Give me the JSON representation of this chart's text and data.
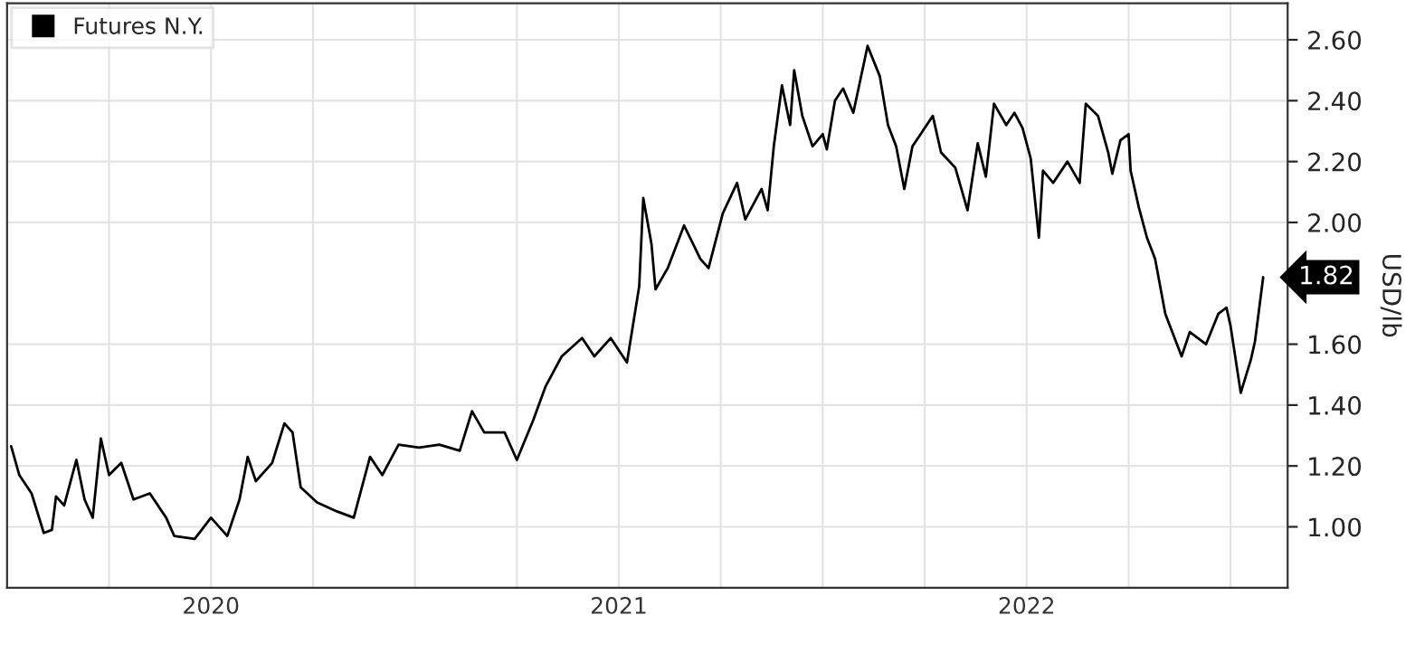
{
  "chart_data": {
    "type": "line",
    "ylabel": "USD/lb",
    "legend": "top left",
    "grid": true,
    "marker": "none",
    "line_style": "solid",
    "xlim": [
      2019.5,
      2022.64
    ],
    "ylim": [
      0.8,
      2.72
    ],
    "xticks": [
      {
        "value": 2019.75,
        "label": null
      },
      {
        "value": 2020.0,
        "label": "2020"
      },
      {
        "value": 2020.25,
        "label": null
      },
      {
        "value": 2020.5,
        "label": null
      },
      {
        "value": 2020.75,
        "label": null
      },
      {
        "value": 2021.0,
        "label": "2021"
      },
      {
        "value": 2021.25,
        "label": null
      },
      {
        "value": 2021.5,
        "label": null
      },
      {
        "value": 2021.75,
        "label": null
      },
      {
        "value": 2022.0,
        "label": "2022"
      },
      {
        "value": 2022.25,
        "label": null
      },
      {
        "value": 2022.5,
        "label": null
      }
    ],
    "yticks": [
      {
        "value": 1.0,
        "label": "1.00"
      },
      {
        "value": 1.2,
        "label": "1.20"
      },
      {
        "value": 1.4,
        "label": "1.40"
      },
      {
        "value": 1.6,
        "label": "1.60"
      },
      {
        "value": 2.0,
        "label": "2.00"
      },
      {
        "value": 2.2,
        "label": "2.20"
      },
      {
        "value": 2.4,
        "label": "2.40"
      },
      {
        "value": 2.6,
        "label": "2.60"
      }
    ],
    "annotations": [
      {
        "text": "1.82",
        "x": 2022.58,
        "y": 1.82
      }
    ],
    "series": [
      {
        "name": "Futures N.Y.",
        "color": "#000000",
        "x": [
          2019.51,
          2019.53,
          2019.56,
          2019.59,
          2019.61,
          2019.62,
          2019.64,
          2019.67,
          2019.69,
          2019.71,
          2019.73,
          2019.75,
          2019.78,
          2019.81,
          2019.85,
          2019.89,
          2019.91,
          2019.96,
          2020.0,
          2020.04,
          2020.07,
          2020.09,
          2020.11,
          2020.15,
          2020.18,
          2020.2,
          2020.22,
          2020.26,
          2020.31,
          2020.35,
          2020.39,
          2020.42,
          2020.46,
          2020.51,
          2020.56,
          2020.61,
          2020.64,
          2020.67,
          2020.72,
          2020.75,
          2020.79,
          2020.82,
          2020.86,
          2020.91,
          2020.94,
          2020.98,
          2021.02,
          2021.05,
          2021.06,
          2021.08,
          2021.09,
          2021.12,
          2021.16,
          2021.2,
          2021.22,
          2021.255,
          2021.29,
          2021.31,
          2021.35,
          2021.365,
          2021.38,
          2021.4,
          2021.42,
          2021.43,
          2021.45,
          2021.475,
          2021.5,
          2021.51,
          2021.53,
          2021.55,
          2021.575,
          2021.61,
          2021.64,
          2021.66,
          2021.68,
          2021.7,
          2021.72,
          2021.75,
          2021.77,
          2021.79,
          2021.825,
          2021.855,
          2021.88,
          2021.9,
          2021.92,
          2021.95,
          2021.97,
          2021.99,
          2022.01,
          2022.03,
          2022.04,
          2022.065,
          2022.1,
          2022.13,
          2022.145,
          2022.175,
          2022.2,
          2022.21,
          2022.23,
          2022.25,
          2022.255,
          2022.275,
          2022.295,
          2022.315,
          2022.34,
          2022.38,
          2022.4,
          2022.44,
          2022.47,
          2022.49,
          2022.5,
          2022.525,
          2022.55,
          2022.56,
          2022.58
        ],
        "values": [
          1.265,
          1.17,
          1.11,
          0.98,
          0.99,
          1.1,
          1.07,
          1.22,
          1.09,
          1.03,
          1.29,
          1.17,
          1.21,
          1.09,
          1.11,
          1.03,
          0.97,
          0.96,
          1.03,
          0.97,
          1.09,
          1.23,
          1.15,
          1.21,
          1.34,
          1.31,
          1.13,
          1.08,
          1.05,
          1.03,
          1.23,
          1.17,
          1.27,
          1.26,
          1.27,
          1.25,
          1.38,
          1.31,
          1.31,
          1.22,
          1.35,
          1.46,
          1.56,
          1.62,
          1.56,
          1.62,
          1.54,
          1.79,
          2.08,
          1.93,
          1.78,
          1.85,
          1.99,
          1.88,
          1.85,
          2.03,
          2.13,
          2.01,
          2.11,
          2.04,
          2.25,
          2.45,
          2.32,
          2.5,
          2.35,
          2.25,
          2.29,
          2.24,
          2.4,
          2.44,
          2.36,
          2.58,
          2.48,
          2.32,
          2.25,
          2.11,
          2.25,
          2.31,
          2.35,
          2.23,
          2.18,
          2.04,
          2.26,
          2.15,
          2.39,
          2.32,
          2.36,
          2.31,
          2.21,
          1.95,
          2.17,
          2.13,
          2.2,
          2.13,
          2.39,
          2.35,
          2.23,
          2.16,
          2.27,
          2.29,
          2.17,
          2.05,
          1.95,
          1.88,
          1.7,
          1.56,
          1.64,
          1.6,
          1.7,
          1.72,
          1.66,
          1.44,
          1.55,
          1.61,
          1.82
        ]
      }
    ]
  }
}
